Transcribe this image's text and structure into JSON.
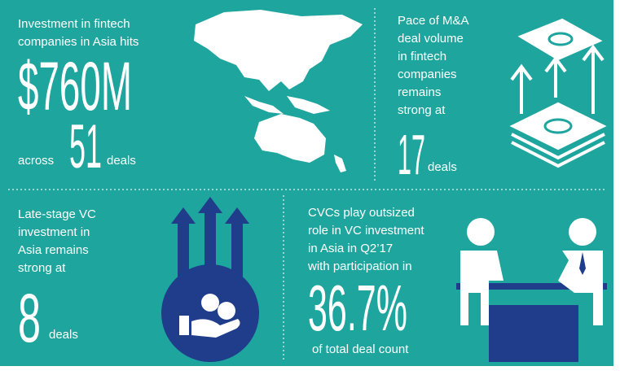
{
  "panels": [
    {
      "lines": [
        "Investment in fintech",
        "companies in Asia hits"
      ],
      "big": "$760M",
      "prefix": "across",
      "number": "51",
      "suffix": "deals"
    },
    {
      "lines": [
        "Pace of M&A",
        "deal volume",
        "in fintech",
        "companies",
        "remains",
        "strong at"
      ],
      "number": "17",
      "suffix": "deals"
    },
    {
      "lines": [
        "Late-stage VC",
        "investment in",
        "Asia remains",
        "strong at"
      ],
      "number": "8",
      "suffix": "deals"
    },
    {
      "lines": [
        "CVCs play outsized",
        "role in VC investment",
        "in Asia in Q2’17",
        "with participation in"
      ],
      "big": "36.7%",
      "suffix": "of total deal count"
    }
  ]
}
